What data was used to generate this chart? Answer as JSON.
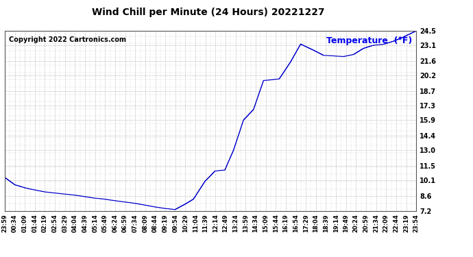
{
  "title": "Wind Chill per Minute (24 Hours) 20221227",
  "copyright_text": "Copyright 2022 Cartronics.com",
  "legend_text": "Temperature  (°F)",
  "legend_color": "#0000ee",
  "line_color": "#0000cc",
  "background_color": "#ffffff",
  "grid_color": "#bbbbbb",
  "ylim": [
    7.2,
    24.5
  ],
  "yticks": [
    7.2,
    8.6,
    10.1,
    11.5,
    13.0,
    14.4,
    15.9,
    17.3,
    18.7,
    20.2,
    21.6,
    23.1,
    24.5
  ],
  "xtick_labels": [
    "23:59",
    "00:34",
    "01:09",
    "01:44",
    "02:19",
    "02:54",
    "03:29",
    "04:04",
    "04:39",
    "05:14",
    "05:49",
    "06:24",
    "06:59",
    "07:34",
    "08:09",
    "08:44",
    "09:19",
    "09:54",
    "10:29",
    "11:04",
    "11:39",
    "12:14",
    "12:49",
    "13:24",
    "13:59",
    "14:34",
    "15:09",
    "15:44",
    "16:19",
    "16:54",
    "17:29",
    "18:04",
    "18:39",
    "19:14",
    "19:49",
    "20:24",
    "20:59",
    "21:34",
    "22:09",
    "22:44",
    "23:19",
    "23:54"
  ],
  "keypoints_x": [
    0,
    35,
    70,
    140,
    210,
    245,
    280,
    315,
    350,
    385,
    455,
    525,
    560,
    595,
    630,
    660,
    700,
    735,
    770,
    800,
    835,
    870,
    905,
    960,
    1000,
    1035,
    1080,
    1115,
    1185,
    1220,
    1255,
    1290,
    1325,
    1360,
    1395,
    1440
  ],
  "keypoints_y": [
    10.4,
    9.7,
    9.4,
    9.0,
    8.8,
    8.7,
    8.55,
    8.4,
    8.3,
    8.15,
    7.9,
    7.55,
    7.4,
    7.3,
    7.8,
    8.3,
    10.0,
    11.0,
    11.1,
    13.0,
    15.9,
    16.9,
    19.7,
    19.85,
    21.5,
    23.2,
    22.6,
    22.1,
    22.0,
    22.2,
    22.8,
    23.1,
    23.2,
    23.5,
    23.9,
    24.5
  ],
  "title_fontsize": 10,
  "copyright_fontsize": 7,
  "legend_fontsize": 9,
  "ytick_fontsize": 7,
  "xtick_fontsize": 6
}
